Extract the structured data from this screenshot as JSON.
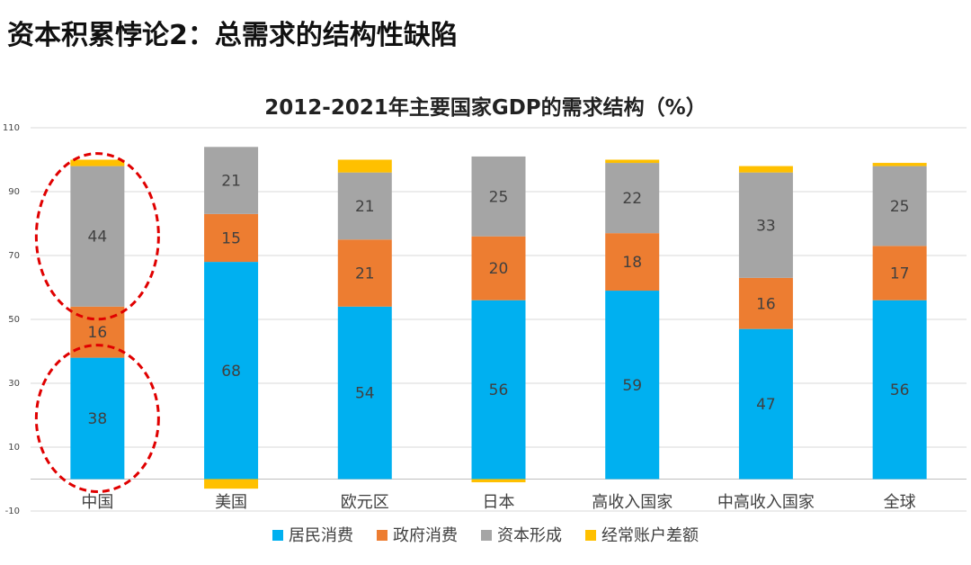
{
  "slide": {
    "title": "资本积累悖论2：总需求的结构性缺陷"
  },
  "chart_data": {
    "type": "bar",
    "stacked": true,
    "title": "2012-2021年主要国家GDP的需求结构（%）",
    "xlabel": "",
    "ylabel": "",
    "categories": [
      "中国",
      "美国",
      "欧元区",
      "日本",
      "高收入国家",
      "中高收入国家",
      "全球"
    ],
    "ylim": [
      -10,
      110
    ],
    "yticks": [
      -10,
      10,
      30,
      50,
      70,
      90,
      110
    ],
    "grid": true,
    "legend_position": "bottom",
    "series": [
      {
        "name": "居民消费",
        "color": "#00B0F0",
        "values": [
          38,
          68,
          54,
          56,
          59,
          47,
          56
        ]
      },
      {
        "name": "政府消费",
        "color": "#ED7D31",
        "values": [
          16,
          15,
          21,
          20,
          18,
          16,
          17
        ]
      },
      {
        "name": "资本形成",
        "color": "#A5A5A5",
        "values": [
          44,
          21,
          21,
          25,
          22,
          33,
          25
        ]
      },
      {
        "name": "经常账户差额",
        "color": "#FFC000",
        "values": [
          2,
          -3,
          4,
          -1,
          1,
          2,
          1
        ]
      }
    ],
    "data_labels": [
      [
        "38",
        "68",
        "54",
        "56",
        "59",
        "47",
        "56"
      ],
      [
        "16",
        "15",
        "21",
        "20",
        "18",
        "16",
        "17"
      ],
      [
        "44",
        "21",
        "21",
        "25",
        "22",
        "33",
        "25"
      ],
      [
        "",
        "",
        "",
        "",
        "",
        "",
        ""
      ]
    ],
    "annotations": {
      "highlight_color": "#E00000",
      "highlighted": [
        {
          "category_index": 0,
          "series_index": 2
        },
        {
          "category_index": 0,
          "series_index": 0
        }
      ]
    }
  }
}
